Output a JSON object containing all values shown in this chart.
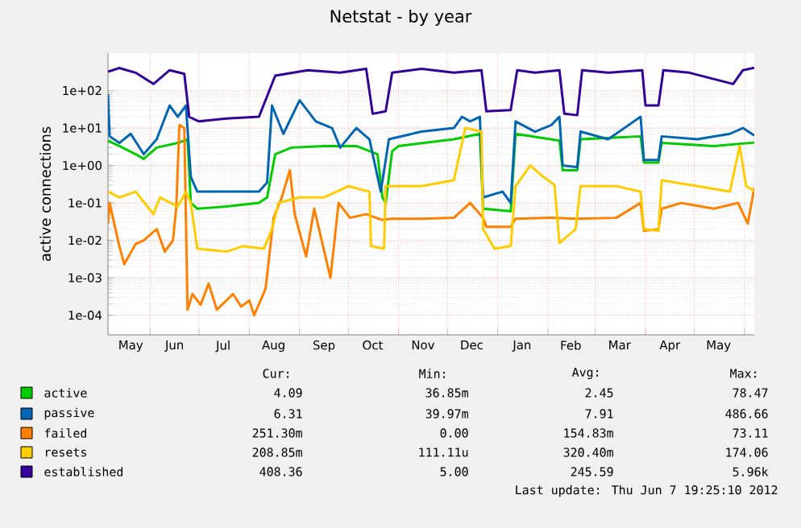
{
  "chart_data": {
    "type": "line",
    "title": "Netstat - by year",
    "ylabel": "active connections",
    "xlim": [
      "2011-05-06",
      "2012-06-07"
    ],
    "xticks": [
      {
        "value": "2011-05-20",
        "label": "May"
      },
      {
        "value": "2011-06-01",
        "label": null
      },
      {
        "value": "2011-06-16",
        "label": "Jun"
      },
      {
        "value": "2011-07-01",
        "label": null
      },
      {
        "value": "2011-07-16",
        "label": "Jul"
      },
      {
        "value": "2011-08-01",
        "label": null
      },
      {
        "value": "2011-08-16",
        "label": "Aug"
      },
      {
        "value": "2011-09-01",
        "label": null
      },
      {
        "value": "2011-09-16",
        "label": "Sep"
      },
      {
        "value": "2011-10-01",
        "label": null
      },
      {
        "value": "2011-10-16",
        "label": "Oct"
      },
      {
        "value": "2011-11-01",
        "label": null
      },
      {
        "value": "2011-11-16",
        "label": "Nov"
      },
      {
        "value": "2011-12-01",
        "label": null
      },
      {
        "value": "2011-12-16",
        "label": "Dec"
      },
      {
        "value": "2012-01-01",
        "label": null
      },
      {
        "value": "2012-01-16",
        "label": "Jan"
      },
      {
        "value": "2012-02-01",
        "label": null
      },
      {
        "value": "2012-02-15",
        "label": "Feb"
      },
      {
        "value": "2012-03-01",
        "label": null
      },
      {
        "value": "2012-03-16",
        "label": "Mar"
      },
      {
        "value": "2012-04-01",
        "label": null
      },
      {
        "value": "2012-04-16",
        "label": "Apr"
      },
      {
        "value": "2012-05-01",
        "label": null
      },
      {
        "value": "2012-05-16",
        "label": "May"
      },
      {
        "value": "2012-06-01",
        "label": null
      }
    ],
    "ylim": [
      3e-05,
      1000
    ],
    "log": "y",
    "yticks": [
      {
        "value": 0.0001,
        "label": "1e-04"
      },
      {
        "value": 0.001,
        "label": "1e-03"
      },
      {
        "value": 0.01,
        "label": "1e-02"
      },
      {
        "value": 0.1,
        "label": "1e-01"
      },
      {
        "value": 1,
        "label": "1e+00"
      },
      {
        "value": 10,
        "label": "1e+01"
      },
      {
        "value": 100,
        "label": "1e+02"
      }
    ],
    "grid": true,
    "legend": "bottom",
    "marker": "none",
    "line_style": "solid",
    "series": [
      {
        "name": "active",
        "color": "#00cc00",
        "x": [
          "2011-05-06",
          "2011-05-13",
          "2011-05-23",
          "2011-05-28",
          "2011-06-05",
          "2011-06-18",
          "2011-06-24",
          "2011-06-26",
          "2011-06-30",
          "2011-07-18",
          "2011-08-07",
          "2011-08-12",
          "2011-08-17",
          "2011-08-27",
          "2011-09-16",
          "2011-10-06",
          "2011-10-19",
          "2011-10-22",
          "2011-10-24",
          "2011-10-28",
          "2011-11-01",
          "2011-12-05",
          "2011-12-21",
          "2011-12-23",
          "2012-01-09",
          "2012-01-12",
          "2012-02-08",
          "2012-02-10",
          "2012-02-19",
          "2012-02-21",
          "2012-03-29",
          "2012-03-31",
          "2012-04-09",
          "2012-04-11",
          "2012-05-13",
          "2012-06-07"
        ],
        "values": [
          4.6,
          3.3,
          2,
          1.5,
          3,
          4,
          5,
          0.1,
          0.07,
          0.08,
          0.1,
          0.14,
          2,
          3,
          3.3,
          3.3,
          2,
          0.14,
          0.1,
          2.4,
          3.3,
          5,
          7,
          0.07,
          0.06,
          7,
          4.6,
          0.75,
          0.75,
          5,
          6,
          1.2,
          1.2,
          4,
          3.3,
          4.09
        ]
      },
      {
        "name": "passive",
        "color": "#0066b3",
        "x": [
          "2011-05-06",
          "2011-05-07",
          "2011-05-13",
          "2011-05-20",
          "2011-05-28",
          "2011-06-05",
          "2011-06-13",
          "2011-06-18",
          "2011-06-23",
          "2011-06-26",
          "2011-06-30",
          "2011-07-18",
          "2011-08-07",
          "2011-08-12",
          "2011-08-15",
          "2011-08-22",
          "2011-09-01",
          "2011-09-11",
          "2011-09-21",
          "2011-09-26",
          "2011-10-06",
          "2011-10-14",
          "2011-10-21",
          "2011-10-26",
          "2011-11-15",
          "2011-12-05",
          "2011-12-10",
          "2011-12-15",
          "2011-12-21",
          "2011-12-23",
          "2012-01-04",
          "2012-01-09",
          "2012-01-12",
          "2012-01-24",
          "2012-02-03",
          "2012-02-08",
          "2012-02-10",
          "2012-02-19",
          "2012-02-21",
          "2012-03-09",
          "2012-03-29",
          "2012-03-31",
          "2012-04-09",
          "2012-04-11",
          "2012-05-03",
          "2012-05-23",
          "2012-05-31",
          "2012-06-07"
        ],
        "values": [
          80,
          6,
          4,
          7,
          2,
          5,
          40,
          20,
          40,
          0.5,
          0.2,
          0.2,
          0.2,
          0.35,
          40,
          7,
          55,
          15,
          10,
          3,
          10,
          5,
          0.2,
          5,
          8,
          10,
          20,
          15,
          20,
          0.14,
          0.2,
          0.1,
          15,
          8,
          12,
          20,
          1,
          0.9,
          8,
          5,
          20,
          1.4,
          1.4,
          6,
          5,
          7,
          10,
          6.31
        ]
      },
      {
        "name": "failed",
        "color": "#ff8000",
        "x": [
          "2011-05-06",
          "2011-05-07",
          "2011-05-13",
          "2011-05-16",
          "2011-05-23",
          "2011-05-28",
          "2011-06-05",
          "2011-06-10",
          "2011-06-15",
          "2011-06-17",
          "2011-06-19",
          "2011-06-22",
          "2011-06-24",
          "2011-06-27",
          "2011-07-02",
          "2011-07-07",
          "2011-07-12",
          "2011-07-22",
          "2011-07-27",
          "2011-08-01",
          "2011-08-04",
          "2011-08-11",
          "2011-08-16",
          "2011-08-21",
          "2011-08-26",
          "2011-08-29",
          "2011-09-05",
          "2011-09-10",
          "2011-09-20",
          "2011-09-25",
          "2011-10-02",
          "2011-10-12",
          "2011-10-22",
          "2011-10-28",
          "2011-11-15",
          "2011-12-05",
          "2011-12-15",
          "2011-12-23",
          "2011-12-25",
          "2012-01-09",
          "2012-01-12",
          "2012-02-03",
          "2012-02-18",
          "2012-03-14",
          "2012-03-29",
          "2012-03-31",
          "2012-04-09",
          "2012-04-11",
          "2012-04-23",
          "2012-05-13",
          "2012-05-28",
          "2012-06-03",
          "2012-06-07"
        ],
        "values": [
          0.028,
          0.1,
          0.007,
          0.0023,
          0.008,
          0.01,
          0.02,
          0.005,
          0.01,
          0.07,
          12,
          10,
          0.00014,
          0.00037,
          0.00019,
          0.0007,
          0.00014,
          0.00037,
          0.00017,
          0.00025,
          0.0001,
          0.0005,
          0.04,
          0.14,
          0.75,
          0.05,
          0.0037,
          0.07,
          0.001,
          0.1,
          0.04,
          0.05,
          0.035,
          0.038,
          0.038,
          0.04,
          0.1,
          0.04,
          0.023,
          0.023,
          0.038,
          0.04,
          0.038,
          0.04,
          0.1,
          0.018,
          0.02,
          0.07,
          0.1,
          0.07,
          0.1,
          0.028,
          0.25
        ]
      },
      {
        "name": "resets",
        "color": "#ffcc00",
        "x": [
          "2011-05-06",
          "2011-05-13",
          "2011-05-23",
          "2011-06-03",
          "2011-06-07",
          "2011-06-18",
          "2011-06-23",
          "2011-06-26",
          "2011-06-30",
          "2011-07-18",
          "2011-07-28",
          "2011-08-10",
          "2011-08-15",
          "2011-08-19",
          "2011-09-01",
          "2011-09-16",
          "2011-10-01",
          "2011-10-14",
          "2011-10-15",
          "2011-10-23",
          "2011-10-24",
          "2011-11-01",
          "2011-11-15",
          "2011-12-05",
          "2011-12-12",
          "2011-12-22",
          "2011-12-23",
          "2011-12-30",
          "2012-01-09",
          "2012-01-12",
          "2012-01-21",
          "2012-01-29",
          "2012-02-05",
          "2012-02-08",
          "2012-02-18",
          "2012-02-21",
          "2012-03-14",
          "2012-03-29",
          "2012-03-31",
          "2012-04-09",
          "2012-04-11",
          "2012-05-03",
          "2012-05-23",
          "2012-05-29",
          "2012-06-02",
          "2012-06-07"
        ],
        "values": [
          0.2,
          0.14,
          0.2,
          0.05,
          0.14,
          0.08,
          0.2,
          0.1,
          0.006,
          0.005,
          0.007,
          0.006,
          0.02,
          0.1,
          0.14,
          0.14,
          0.28,
          0.2,
          0.007,
          0.006,
          0.28,
          0.28,
          0.28,
          0.4,
          10,
          8,
          0.02,
          0.006,
          0.007,
          0.28,
          1,
          0.5,
          0.3,
          0.0085,
          0.02,
          0.28,
          0.28,
          0.2,
          0.02,
          0.018,
          0.4,
          0.28,
          0.2,
          3.3,
          0.28,
          0.21
        ]
      },
      {
        "name": "established",
        "color": "#330099",
        "x": [
          "2011-05-06",
          "2011-05-13",
          "2011-05-23",
          "2011-06-03",
          "2011-06-13",
          "2011-06-22",
          "2011-06-25",
          "2011-07-01",
          "2011-07-18",
          "2011-08-07",
          "2011-08-17",
          "2011-09-06",
          "2011-09-26",
          "2011-10-12",
          "2011-10-16",
          "2011-10-24",
          "2011-10-28",
          "2011-11-15",
          "2011-12-05",
          "2011-12-22",
          "2011-12-25",
          "2012-01-09",
          "2012-01-13",
          "2012-01-24",
          "2012-02-08",
          "2012-02-11",
          "2012-02-19",
          "2012-02-22",
          "2012-03-09",
          "2012-03-30",
          "2012-04-01",
          "2012-04-09",
          "2012-04-12",
          "2012-04-28",
          "2012-05-25",
          "2012-05-31",
          "2012-06-07"
        ],
        "values": [
          320,
          400,
          300,
          150,
          350,
          280,
          20,
          15,
          18,
          20,
          250,
          350,
          300,
          380,
          24,
          28,
          300,
          380,
          300,
          350,
          28,
          30,
          350,
          300,
          350,
          24,
          22,
          350,
          300,
          350,
          40,
          40,
          350,
          300,
          150,
          350,
          408
        ]
      }
    ],
    "annotations": [
      "Cur:",
      "Min:",
      "Avg:",
      "Max:",
      "4.09",
      "36.85m",
      "2.45",
      "78.47",
      "6.31",
      "39.97m",
      "7.91",
      "486.66",
      "251.30m",
      "0.00",
      "154.83m",
      "73.11",
      "208.85m",
      "111.11u",
      "320.40m",
      "174.06",
      "408.36",
      "5.00",
      "245.59",
      "5.96k",
      "Last update:  Thu Jun  7 19:25:10 2012"
    ]
  }
}
